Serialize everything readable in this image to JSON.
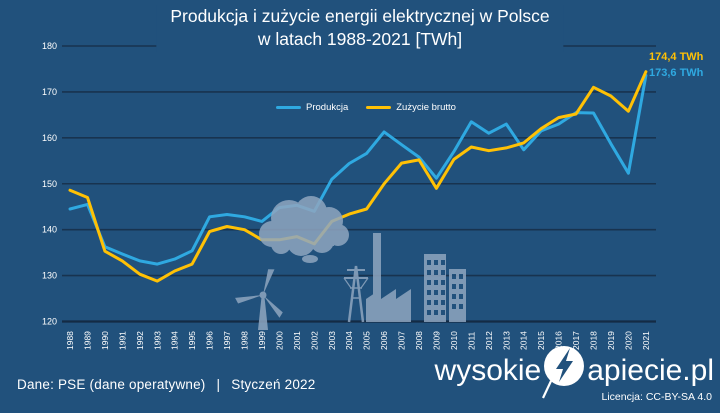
{
  "title": {
    "line1": "Produkcja i zużycie energii elektrycznej w Polsce",
    "line2": "w latach 1988-2021 [TWh]"
  },
  "legend": {
    "produkcja_label": "Produkcja",
    "zuzycie_label": "Zużycie brutto"
  },
  "end_labels": {
    "zuzycie": "174,4 TWh",
    "produkcja": "173,6 TWh"
  },
  "footer": {
    "source": "Dane: PSE (dane operatywne)",
    "separator": "|",
    "date": "Styczeń 2022",
    "license": "Licencja: CC-BY-SA 4.0"
  },
  "logo": {
    "prefix": "wysokie",
    "suffix": "apiecie.pl",
    "icon": "lightning-circle-icon"
  },
  "colors": {
    "background": "#21517C",
    "gridline": "#18334F",
    "axis_line": "#142B44",
    "text": "#FFFFFF",
    "produkcja": "#2FA9E1",
    "zuzycie": "#FFC105",
    "watermark": "#8FA6C0"
  },
  "chart_data": {
    "type": "line",
    "title": "Produkcja i zużycie energii elektrycznej w Polsce w latach 1988-2021 [TWh]",
    "xlabel": "",
    "ylabel": "TWh",
    "ylim": [
      120,
      180
    ],
    "yticks": [
      120,
      130,
      140,
      150,
      160,
      170,
      180
    ],
    "grid": "horizontal",
    "legend_position": "top",
    "categories": [
      "1988",
      "1989",
      "1990",
      "1991",
      "1992",
      "1993",
      "1994",
      "1995",
      "1996",
      "1997",
      "1998",
      "1999",
      "2000",
      "2001",
      "2002",
      "2003",
      "2004",
      "2005",
      "2006",
      "2007",
      "2008",
      "2009",
      "2010",
      "2011",
      "2012",
      "2013",
      "2014",
      "2015",
      "2016",
      "2017",
      "2018",
      "2019",
      "2020",
      "2021"
    ],
    "series": [
      {
        "name": "Produkcja",
        "color_key": "produkcja",
        "values": [
          144.5,
          145.5,
          136.3,
          134.7,
          133.2,
          132.5,
          133.6,
          135.4,
          142.8,
          143.3,
          142.8,
          141.8,
          144.8,
          145.3,
          144.0,
          151.0,
          154.4,
          156.6,
          161.3,
          158.5,
          155.8,
          151.2,
          157.0,
          163.5,
          161.0,
          163.0,
          157.4,
          161.5,
          163.0,
          165.5,
          165.4,
          158.7,
          152.3,
          173.6
        ]
      },
      {
        "name": "Zużycie brutto",
        "color_key": "zuzycie",
        "values": [
          148.6,
          147.0,
          135.3,
          133.2,
          130.3,
          128.8,
          131.0,
          132.5,
          139.6,
          140.7,
          140.0,
          137.8,
          137.8,
          138.5,
          136.9,
          141.8,
          143.4,
          144.5,
          150.0,
          154.5,
          155.2,
          149.0,
          155.3,
          158.0,
          157.2,
          157.8,
          158.9,
          162.0,
          164.4,
          165.2,
          171.0,
          169.1,
          165.8,
          174.4
        ]
      }
    ]
  }
}
